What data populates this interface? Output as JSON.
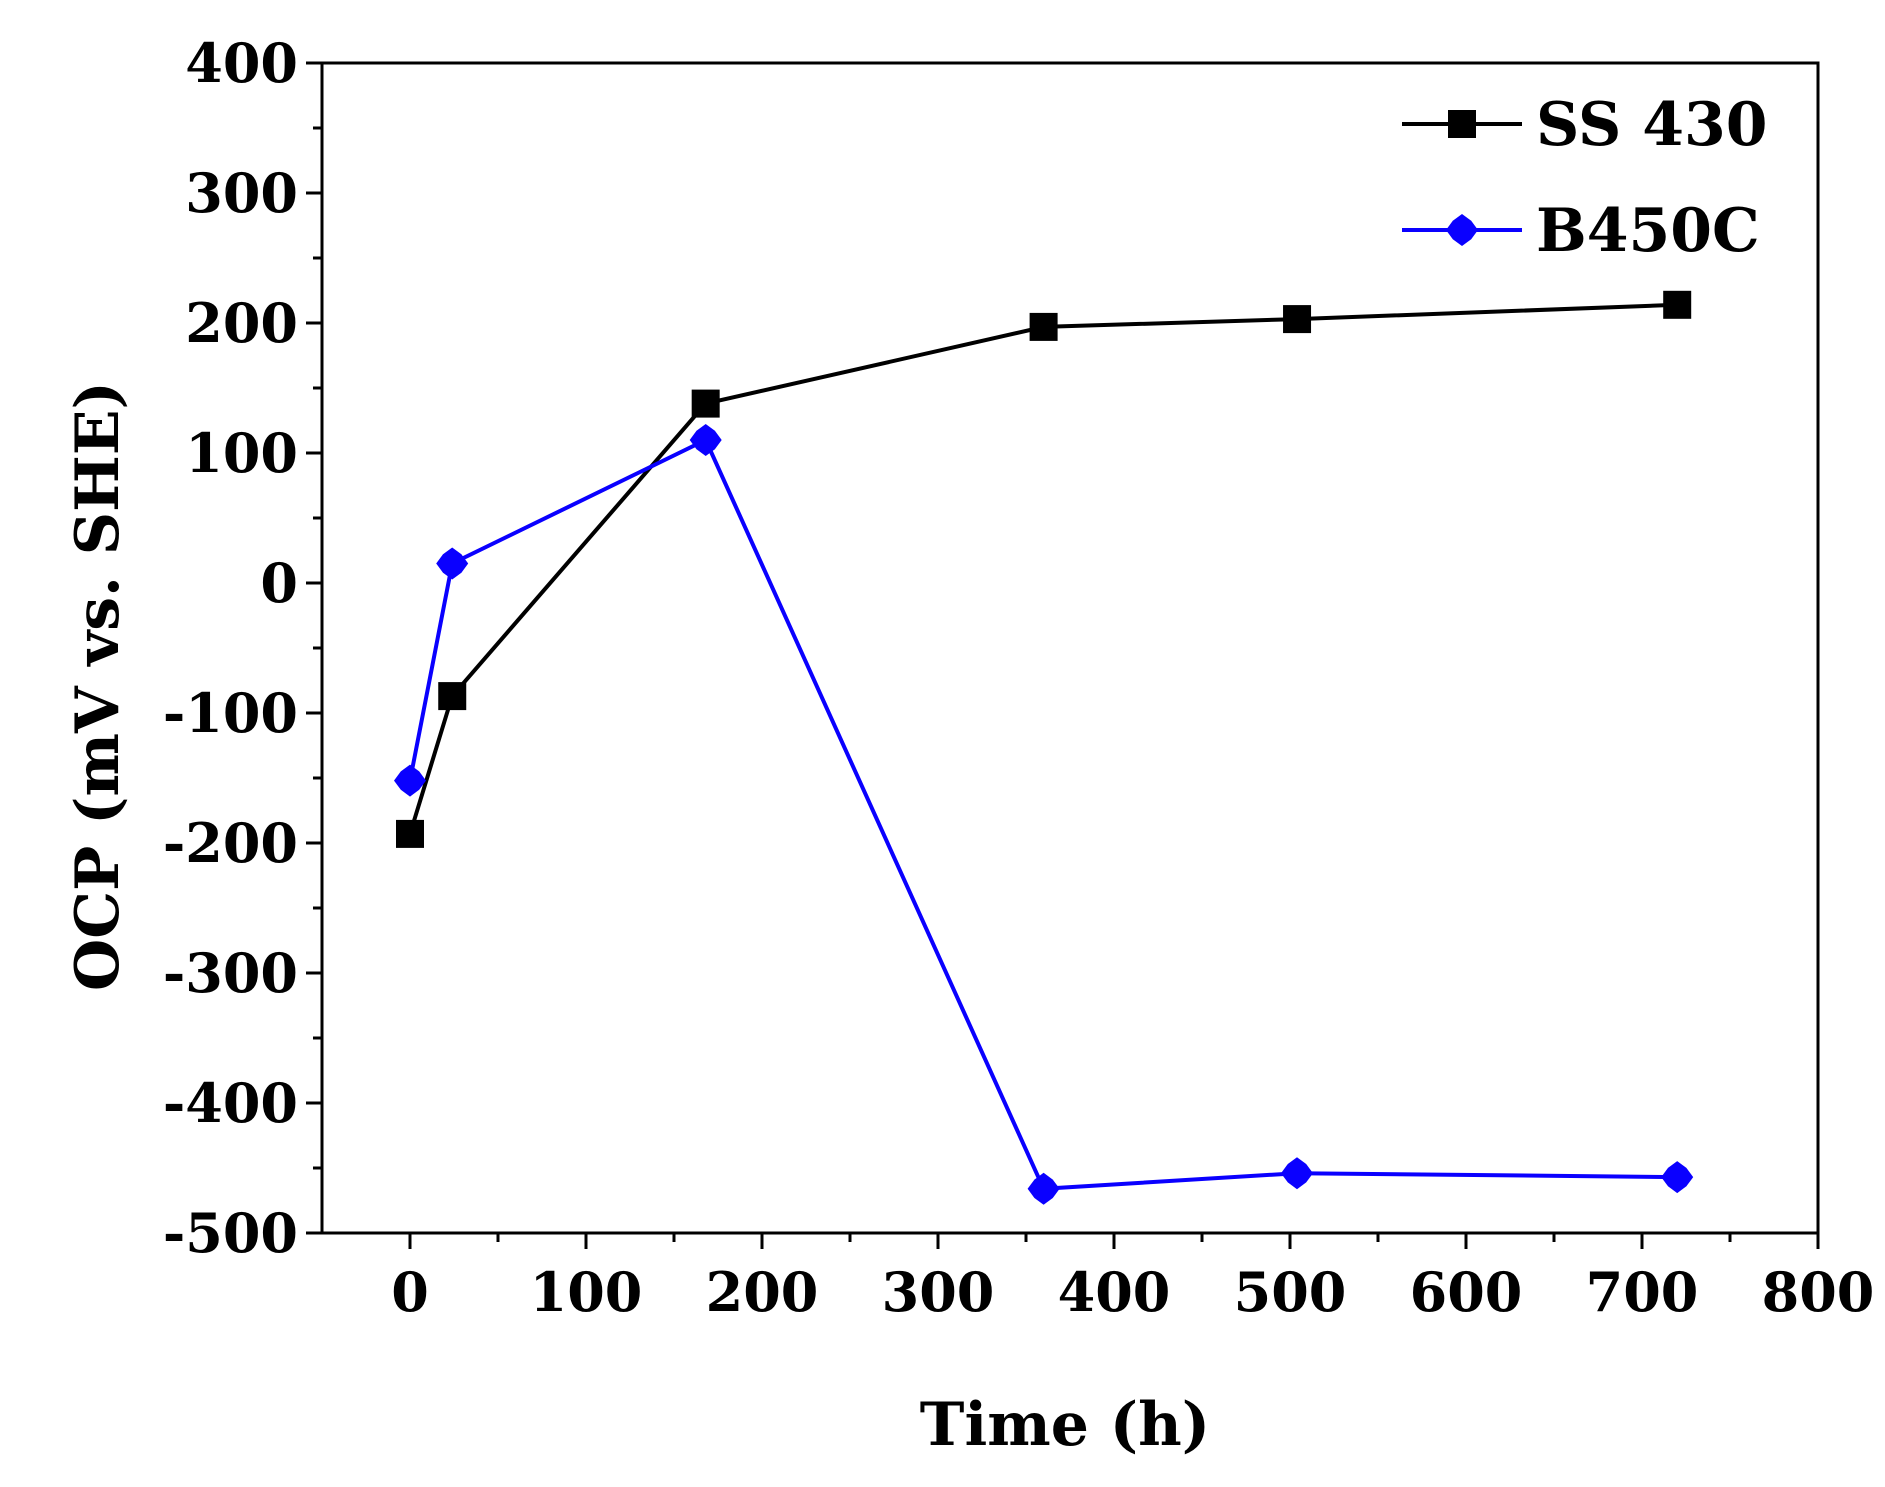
{
  "chart_data": {
    "type": "line",
    "title": "",
    "xlabel": "Time (h)",
    "ylabel": "OCP (mV vs. SHE)",
    "xlim": [
      -50,
      800
    ],
    "ylim": [
      -500,
      400
    ],
    "xticks": [
      0,
      100,
      200,
      300,
      400,
      500,
      600,
      700,
      800
    ],
    "yticks": [
      400,
      300,
      200,
      100,
      0,
      -100,
      -200,
      -300,
      -400,
      -500
    ],
    "xtick_labels": [
      "0",
      "100",
      "200",
      "300",
      "400",
      "500",
      "600",
      "700",
      "800"
    ],
    "ytick_labels": [
      "400",
      "300",
      "200",
      "100",
      "0",
      "-100",
      "-200",
      "-300",
      "-400",
      "-500"
    ],
    "grid": false,
    "legend_position": "top-right",
    "series": [
      {
        "name": "SS 430",
        "color": "#000000",
        "marker": "square",
        "x": [
          0,
          24,
          168,
          360,
          504,
          720
        ],
        "y": [
          -193,
          -87,
          138,
          197,
          203,
          214
        ]
      },
      {
        "name": "B450C",
        "color": "#0a00ff",
        "marker": "diamond",
        "x": [
          0,
          24,
          168,
          360,
          504,
          720
        ],
        "y": [
          -152,
          15,
          110,
          -466,
          -454,
          -457
        ]
      }
    ]
  }
}
